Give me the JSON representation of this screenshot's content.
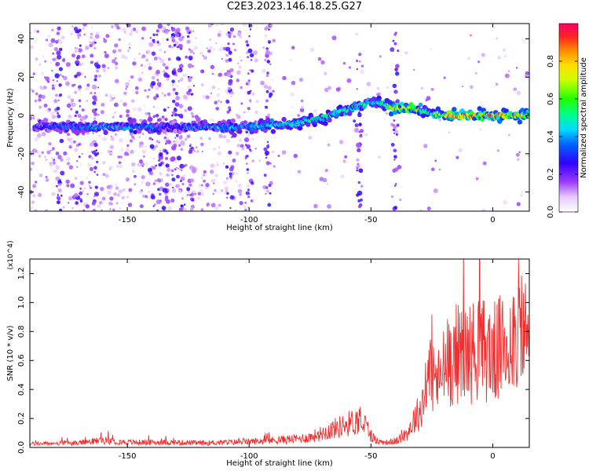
{
  "figure": {
    "title": "C2E3.2023.146.18.25.G27"
  },
  "chart_data": [
    {
      "type": "heatmap",
      "title": "C2E3.2023.146.18.25.G27",
      "xlabel": "Height of straight line (km)",
      "ylabel": "Frequency (Hz)",
      "xlim": [
        -190,
        15
      ],
      "ylim": [
        -50,
        48
      ],
      "x_ticks": [
        -150,
        -100,
        -50,
        0
      ],
      "x_tick_labels": [
        "-150",
        "-100",
        "-50",
        "0"
      ],
      "y_ticks": [
        -40,
        -20,
        0,
        20,
        40
      ],
      "y_tick_labels": [
        "-40",
        "-20",
        "0",
        "20",
        "40"
      ],
      "colorbar": {
        "label": "Normalized spectral amplitude",
        "range": [
          0,
          1
        ],
        "ticks": [
          0.0,
          0.2,
          0.4,
          0.6,
          0.8
        ],
        "tick_labels": [
          "0.0",
          "0.2",
          "0.4",
          "0.6",
          "0.8"
        ],
        "colormap": "rainbow (white → violet → blue → cyan → green → yellow → orange → red)"
      },
      "ridge": {
        "x": [
          -190,
          -180,
          -170,
          -160,
          -150,
          -140,
          -130,
          -120,
          -110,
          -100,
          -90,
          -80,
          -70,
          -60,
          -50,
          -45,
          -40,
          -35,
          -30,
          -25,
          -20,
          -15,
          -10,
          -5,
          0,
          5,
          10,
          15
        ],
        "frequency": [
          -6,
          -6,
          -6,
          -6,
          -6,
          -6,
          -6,
          -6,
          -6,
          -6,
          -5,
          -4,
          -1,
          3,
          7,
          6,
          4,
          4,
          3,
          1,
          0,
          0,
          0,
          0,
          0,
          0,
          0,
          0
        ],
        "amplitude": [
          0.3,
          0.35,
          0.4,
          0.42,
          0.42,
          0.4,
          0.3,
          0.4,
          0.42,
          0.45,
          0.5,
          0.52,
          0.55,
          0.55,
          0.5,
          0.55,
          0.85,
          0.8,
          0.6,
          0.55,
          0.8,
          0.9,
          0.9,
          0.75,
          0.95,
          0.85,
          0.85,
          0.7
        ]
      }
    },
    {
      "type": "line",
      "xlabel": "Height of straight line (km)",
      "ylabel": "SNR (10 * v/v)",
      "y_multiplier": "(x10^4)",
      "xlim": [
        -190,
        15
      ],
      "ylim": [
        0,
        13000
      ],
      "x_ticks": [
        -150,
        -100,
        -50,
        0
      ],
      "x_tick_labels": [
        "-150",
        "-100",
        "-50",
        "0"
      ],
      "y_ticks": [
        0,
        2000,
        4000,
        6000,
        8000,
        10000,
        12000
      ],
      "y_tick_labels": [
        "0.0",
        "0.2",
        "0.4",
        "0.6",
        "0.8",
        "1.0",
        "1.2"
      ],
      "color": "#f03030",
      "envelope_x": [
        -190,
        -170,
        -160,
        -150,
        -140,
        -130,
        -120,
        -110,
        -100,
        -90,
        -80,
        -75,
        -70,
        -65,
        -60,
        -55,
        -52,
        -50,
        -47,
        -44,
        -40,
        -37,
        -35,
        -32,
        -30,
        -28,
        -26,
        -25,
        -22,
        -20,
        -15,
        -10,
        -5,
        0,
        5,
        8,
        10,
        15
      ],
      "envelope_mean": [
        250,
        300,
        500,
        350,
        350,
        350,
        300,
        350,
        400,
        500,
        600,
        700,
        1000,
        1300,
        1600,
        1900,
        1500,
        800,
        400,
        350,
        400,
        700,
        1000,
        2000,
        2500,
        3500,
        5500,
        5000,
        4500,
        5500,
        6500,
        6500,
        6800,
        6500,
        7000,
        7500,
        8500,
        7500
      ],
      "peak_labels_none": true
    }
  ],
  "colors": {
    "line": "#f03030",
    "axis": "#000000",
    "background": "#ffffff"
  }
}
